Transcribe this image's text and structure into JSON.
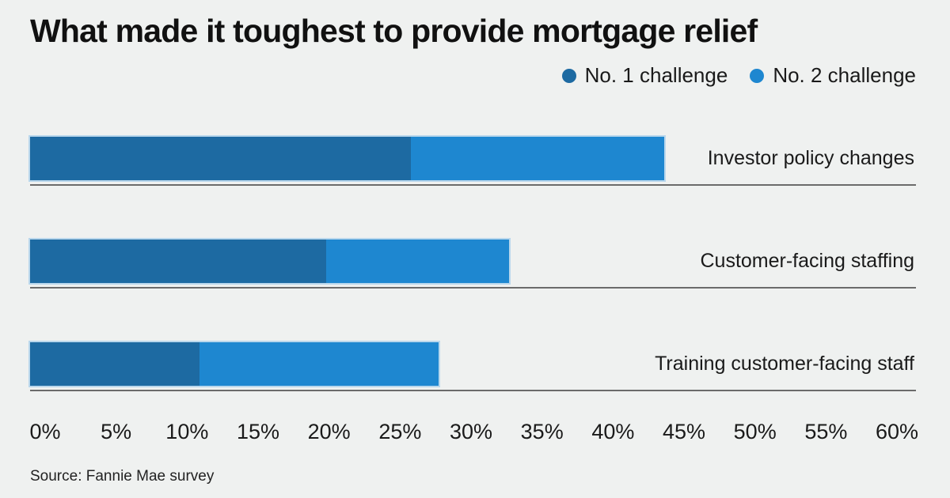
{
  "chart": {
    "title": "What made it toughest to provide mortgage relief",
    "source": "Source: Fannie Mae survey",
    "legend": [
      {
        "label": "No. 1 challenge",
        "color": "#1d6aa2"
      },
      {
        "label": "No. 2 challenge",
        "color": "#1e87d0"
      }
    ]
  },
  "chart_data": {
    "type": "bar",
    "orientation": "horizontal",
    "stacked": true,
    "title": "What made it toughest to provide mortgage relief",
    "source": "Source: Fannie Mae survey",
    "categories": [
      "Investor policy changes",
      "Customer-facing staffing",
      "Training customer-facing staff"
    ],
    "series": [
      {
        "name": "No. 1 challenge",
        "color": "#1d6aa2",
        "values": [
          27,
          21,
          12
        ]
      },
      {
        "name": "No. 2 challenge",
        "color": "#1e87d0",
        "values": [
          18,
          13,
          17
        ]
      }
    ],
    "totals": [
      45,
      34,
      29
    ],
    "x_ticks": [
      "0%",
      "5%",
      "10%",
      "15%",
      "20%",
      "25%",
      "30%",
      "35%",
      "40%",
      "45%",
      "50%",
      "55%",
      "60%"
    ],
    "xlim": [
      0,
      60
    ],
    "unit": "%",
    "grid": false,
    "legend_position": "top-right",
    "colors": {
      "background": "#eff1f0",
      "row_rule": "#6b6b6b",
      "bar_stroke": "#b9d7ec",
      "text": "#1a1a1a"
    }
  }
}
